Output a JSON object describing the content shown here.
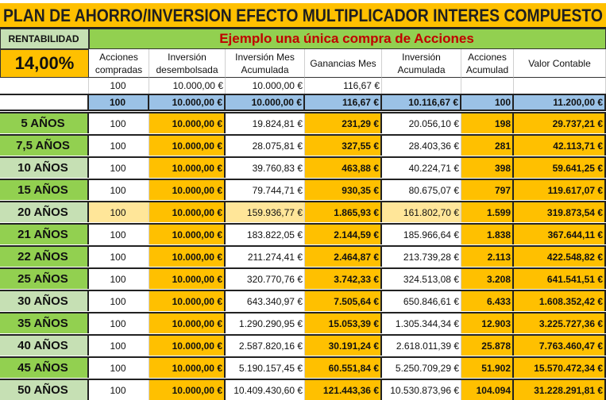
{
  "title": "PLAN DE AHORRO/INVERSION EFECTO MULTIPLICADOR INTERES COMPUESTO",
  "rentabilidad_label": "RENTABILIDAD",
  "rentabilidad_value": "14,00%",
  "subtitle": "Ejemplo una única compra de Acciones",
  "headers": [
    [
      "Acciones",
      "compradas"
    ],
    [
      "Inversión",
      "desembolsada"
    ],
    [
      "Inversión Mes",
      "Acumulada"
    ],
    [
      "Ganancias Mes",
      ""
    ],
    [
      "Inversión",
      "Acumulada"
    ],
    [
      "Acciones",
      "Acumulad"
    ],
    [
      "Valor    Contable",
      ""
    ]
  ],
  "first_row": [
    "100",
    "10.000,00 €",
    "10.000,00 €",
    "116,67 €",
    "",
    "",
    ""
  ],
  "blue_row": [
    "100",
    "10.000,00 €",
    "10.000,00 €",
    "116,67 €",
    "10.116,67 €",
    "100",
    "11.200,00 €"
  ],
  "colors": {
    "orange": "#ffc000",
    "green": "#92d050",
    "light_green": "#c6e0b4",
    "blue": "#9bc2e6",
    "light_yellow": "#ffe699",
    "red_text": "#c00000"
  },
  "rows": [
    {
      "label": "5 AÑOS",
      "shade": "dark",
      "cells": [
        "100",
        "10.000,00 €",
        "19.824,81 €",
        "231,29 €",
        "20.056,10 €",
        "198",
        "29.737,21 €"
      ]
    },
    {
      "label": "7,5 AÑOS",
      "shade": "dark",
      "cells": [
        "100",
        "10.000,00 €",
        "28.075,81 €",
        "327,55 €",
        "28.403,36 €",
        "281",
        "42.113,71 €"
      ]
    },
    {
      "label": "10 AÑOS",
      "shade": "light",
      "cells": [
        "100",
        "10.000,00 €",
        "39.760,83 €",
        "463,88 €",
        "40.224,71 €",
        "398",
        "59.641,25 €"
      ]
    },
    {
      "label": "15 AÑOS",
      "shade": "dark",
      "cells": [
        "100",
        "10.000,00 €",
        "79.744,71 €",
        "930,35 €",
        "80.675,07 €",
        "797",
        "119.617,07 €"
      ]
    },
    {
      "label": "20 AÑOS",
      "shade": "light",
      "highlight": true,
      "cells": [
        "100",
        "10.000,00 €",
        "159.936,77 €",
        "1.865,93 €",
        "161.802,70 €",
        "1.599",
        "319.873,54 €"
      ]
    },
    {
      "label": "21 AÑOS",
      "shade": "dark",
      "cells": [
        "100",
        "10.000,00 €",
        "183.822,05 €",
        "2.144,59 €",
        "185.966,64 €",
        "1.838",
        "367.644,11 €"
      ]
    },
    {
      "label": "22 AÑOS",
      "shade": "dark",
      "cells": [
        "100",
        "10.000,00 €",
        "211.274,41 €",
        "2.464,87 €",
        "213.739,28 €",
        "2.113",
        "422.548,82 €"
      ]
    },
    {
      "label": "25 AÑOS",
      "shade": "dark",
      "cells": [
        "100",
        "10.000,00 €",
        "320.770,76 €",
        "3.742,33 €",
        "324.513,08 €",
        "3.208",
        "641.541,51 €"
      ]
    },
    {
      "label": "30 AÑOS",
      "shade": "light",
      "cells": [
        "100",
        "10.000,00 €",
        "643.340,97 €",
        "7.505,64 €",
        "650.846,61 €",
        "6.433",
        "1.608.352,42 €"
      ]
    },
    {
      "label": "35 AÑOS",
      "shade": "dark",
      "cells": [
        "100",
        "10.000,00 €",
        "1.290.290,95 €",
        "15.053,39 €",
        "1.305.344,34 €",
        "12.903",
        "3.225.727,36 €"
      ]
    },
    {
      "label": "40 AÑOS",
      "shade": "light",
      "cells": [
        "100",
        "10.000,00 €",
        "2.587.820,16 €",
        "30.191,24 €",
        "2.618.011,39 €",
        "25.878",
        "7.763.460,47 €"
      ]
    },
    {
      "label": "45 AÑOS",
      "shade": "dark",
      "cells": [
        "100",
        "10.000,00 €",
        "5.190.157,45 €",
        "60.551,84 €",
        "5.250.709,29 €",
        "51.902",
        "15.570.472,34 €"
      ]
    },
    {
      "label": "50 AÑOS",
      "shade": "light",
      "cells": [
        "100",
        "10.000,00 €",
        "10.409.430,60 €",
        "121.443,36 €",
        "10.530.873,96 €",
        "104.094",
        "31.228.291,81 €"
      ]
    }
  ]
}
